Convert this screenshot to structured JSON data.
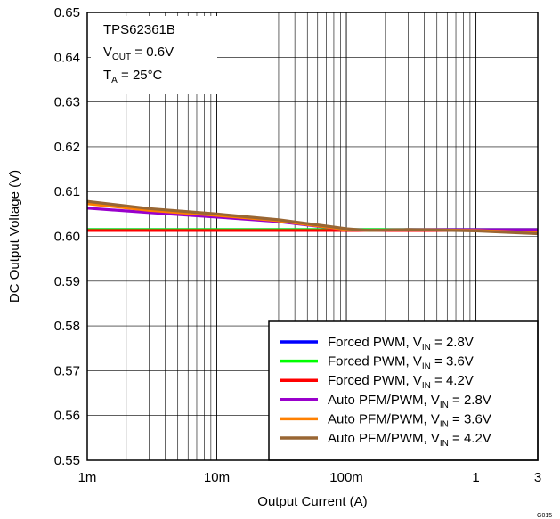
{
  "chart_data": {
    "type": "line",
    "xlabel": "Output Current (A)",
    "ylabel": "DC Output Voltage (V)",
    "xscale": "log",
    "xlim": [
      0.001,
      3
    ],
    "ylim": [
      0.55,
      0.65
    ],
    "x_ticks": [
      0.001,
      0.01,
      0.1,
      1,
      3
    ],
    "x_tick_labels": [
      "1m",
      "10m",
      "100m",
      "1",
      "3"
    ],
    "y_ticks": [
      0.55,
      0.56,
      0.57,
      0.58,
      0.59,
      0.6,
      0.61,
      0.62,
      0.63,
      0.64,
      0.65
    ],
    "y_tick_labels": [
      "0.55",
      "0.56",
      "0.57",
      "0.58",
      "0.59",
      "0.60",
      "0.61",
      "0.62",
      "0.63",
      "0.64",
      "0.65"
    ],
    "grid": true,
    "legend_position": "bottom-right",
    "annotation": {
      "device": "TPS62361B",
      "vout": {
        "main": "V",
        "sub": "OUT",
        "rest": " = 0.6V"
      },
      "ta": {
        "main": "T",
        "sub": "A",
        "rest": " = 25°C"
      }
    },
    "corner_label": "G015",
    "series": [
      {
        "name": "Forced PWM, V_IN = 2.8V",
        "legend": {
          "prefix": "Forced PWM, V",
          "sub": "IN",
          "suffix": " = 2.8V"
        },
        "color": "#0000ff",
        "x": [
          0.001,
          0.003,
          0.01,
          0.03,
          0.1,
          0.3,
          1,
          3
        ],
        "y": [
          0.6015,
          0.6015,
          0.6015,
          0.6015,
          0.6015,
          0.6015,
          0.6015,
          0.6015
        ]
      },
      {
        "name": "Forced PWM, V_IN = 3.6V",
        "legend": {
          "prefix": "Forced PWM, V",
          "sub": "IN",
          "suffix": " = 3.6V"
        },
        "color": "#00ff00",
        "x": [
          0.001,
          0.003,
          0.01,
          0.03,
          0.1,
          0.3,
          1,
          3
        ],
        "y": [
          0.6015,
          0.6015,
          0.6015,
          0.6015,
          0.6015,
          0.6015,
          0.6015,
          0.6015
        ]
      },
      {
        "name": "Forced PWM, V_IN = 4.2V",
        "legend": {
          "prefix": "Forced PWM, V",
          "sub": "IN",
          "suffix": " = 4.2V"
        },
        "color": "#ff0000",
        "x": [
          0.001,
          0.003,
          0.01,
          0.03,
          0.1,
          0.3,
          1,
          3
        ],
        "y": [
          0.6013,
          0.6013,
          0.6013,
          0.6013,
          0.6013,
          0.6013,
          0.6013,
          0.6013
        ]
      },
      {
        "name": "Auto PFM/PWM, V_IN = 2.8V",
        "legend": {
          "prefix": "Auto PFM/PWM, V",
          "sub": "IN",
          "suffix": " = 2.8V"
        },
        "color": "#9900cc",
        "x": [
          0.001,
          0.003,
          0.01,
          0.03,
          0.1,
          0.15,
          0.3,
          1,
          3
        ],
        "y": [
          0.6063,
          0.6053,
          0.6043,
          0.6033,
          0.6015,
          0.6013,
          0.6015,
          0.6015,
          0.6015
        ]
      },
      {
        "name": "Auto PFM/PWM, V_IN = 3.6V",
        "legend": {
          "prefix": "Auto PFM/PWM, V",
          "sub": "IN",
          "suffix": " = 3.6V"
        },
        "color": "#ff8000",
        "x": [
          0.001,
          0.003,
          0.01,
          0.03,
          0.1,
          0.15,
          0.3,
          1,
          3
        ],
        "y": [
          0.6073,
          0.6058,
          0.6047,
          0.6035,
          0.6015,
          0.6013,
          0.6015,
          0.6013,
          0.6008
        ]
      },
      {
        "name": "Auto PFM/PWM, V_IN = 4.2V",
        "legend": {
          "prefix": "Auto PFM/PWM, V",
          "sub": "IN",
          "suffix": " = 4.2V"
        },
        "color": "#996633",
        "x": [
          0.001,
          0.003,
          0.01,
          0.03,
          0.1,
          0.15,
          0.3,
          1,
          3
        ],
        "y": [
          0.6078,
          0.6062,
          0.605,
          0.6037,
          0.6017,
          0.6013,
          0.6015,
          0.6012,
          0.6006
        ]
      }
    ]
  }
}
